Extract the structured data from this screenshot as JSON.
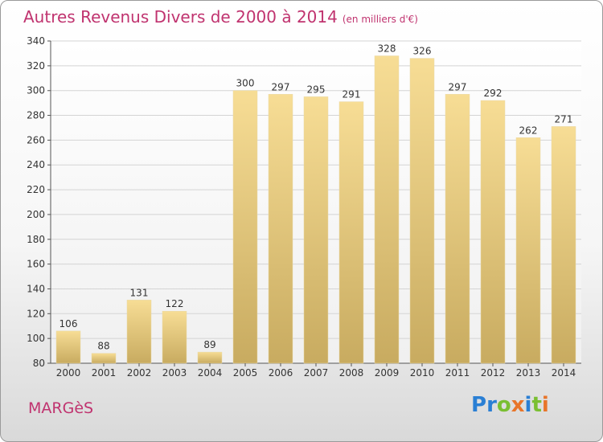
{
  "header": {
    "title": "Autres Revenus Divers de 2000 à 2014",
    "subtitle": "(en milliers d'€)"
  },
  "footer": {
    "location": "MARGèS",
    "logo_text": "Proxiti",
    "logo_colors": [
      "#2a7fd4",
      "#2a7fd4",
      "#7abf32",
      "#e8752a",
      "#2a7fd4",
      "#7abf32",
      "#e8752a"
    ]
  },
  "chart_data": {
    "type": "bar",
    "categories": [
      "2000",
      "2001",
      "2002",
      "2003",
      "2004",
      "2005",
      "2006",
      "2007",
      "2008",
      "2009",
      "2010",
      "2011",
      "2012",
      "2013",
      "2014"
    ],
    "values": [
      106,
      88,
      131,
      122,
      89,
      300,
      297,
      295,
      291,
      328,
      326,
      297,
      292,
      262,
      271
    ],
    "ylim": [
      80,
      340
    ],
    "yticks": [
      80,
      100,
      120,
      140,
      160,
      180,
      200,
      220,
      240,
      260,
      280,
      300,
      320,
      340
    ],
    "grid": true,
    "bar_color_top": "#f7dd95",
    "bar_color_bottom": "#c8ab60",
    "grid_color": "#d4d4d4",
    "axis_color": "#555555"
  }
}
